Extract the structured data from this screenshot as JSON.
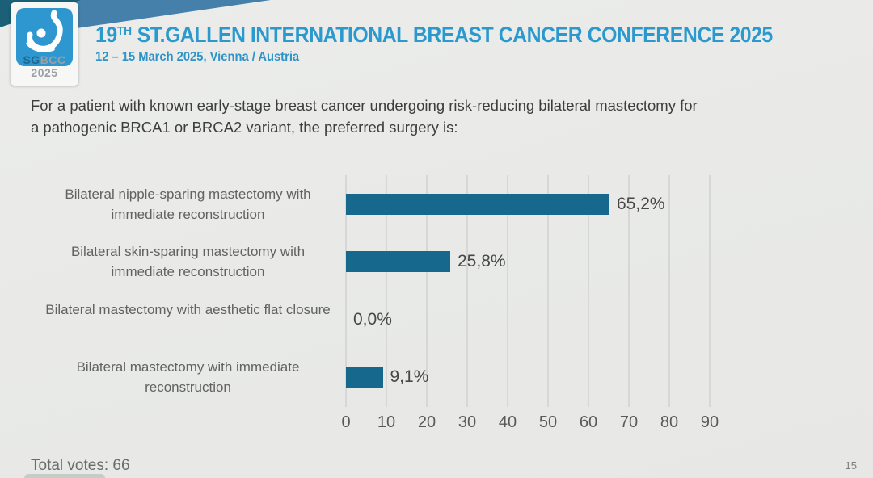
{
  "header": {
    "title_prefix": "19",
    "title_superscript": "TH",
    "title_rest": " ST.GALLEN INTERNATIONAL BREAST CANCER CONFERENCE 2025",
    "subtitle": "12 – 15 March 2025, Vienna / Austria",
    "logo": {
      "sg": "SG",
      "bcc_year": "BCC 2025",
      "icon": "breast-drop-icon"
    }
  },
  "question": {
    "lines": [
      "For a patient with known early-stage breast cancer undergoing risk-reducing bilateral mastectomy for",
      "a pathogenic BRCA1 or BRCA2 variant, the preferred surgery is:"
    ]
  },
  "chart_data": {
    "type": "bar",
    "orientation": "horizontal",
    "title": "For a patient with known early-stage breast cancer undergoing risk-reducing bilateral mastectomy for a pathogenic BRCA1 or BRCA2 variant, the preferred surgery is:",
    "categories": [
      "Bilateral nipple-sparing mastectomy with immediate reconstruction",
      "Bilateral skin-sparing mastectomy with immediate reconstruction",
      "Bilateral mastectomy with aesthetic flat closure",
      "Bilateral mastectomy with immediate reconstruction"
    ],
    "values": [
      65.2,
      25.8,
      0.0,
      9.1
    ],
    "value_labels": [
      "65,2%",
      "25,8%",
      "0,0%",
      "9,1%"
    ],
    "x_ticks": [
      "0",
      "10",
      "20",
      "30",
      "40",
      "50",
      "60",
      "70",
      "80",
      "90"
    ],
    "xlim": [
      0,
      90
    ],
    "grid": true,
    "legend": false,
    "bar_color": "#16688c",
    "units": "percent of votes"
  },
  "footer": {
    "total_votes": "Total votes: 66",
    "page_number": "15"
  },
  "colors": {
    "accent_blue": "#2b99ce",
    "bar_teal": "#16688c",
    "band_dark_teal": "#1b6077",
    "band_steel_blue": "#4480aa",
    "background": "#e9eae8"
  }
}
